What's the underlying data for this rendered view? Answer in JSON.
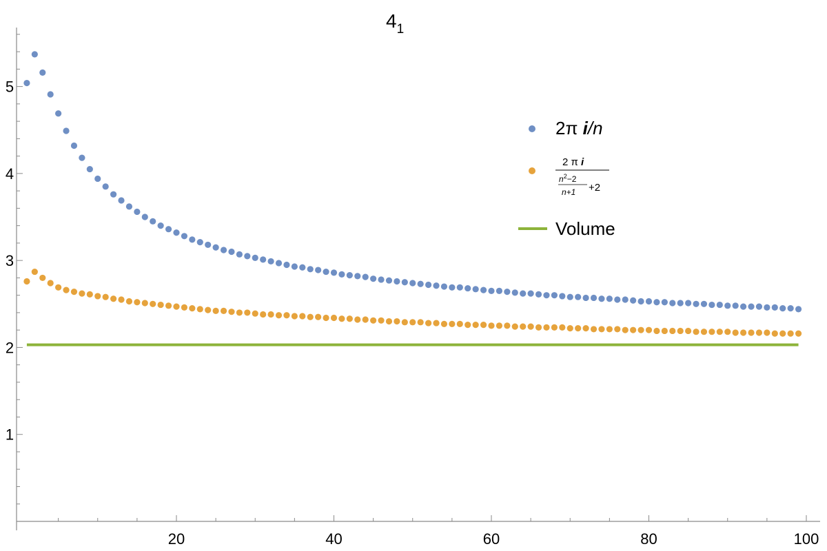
{
  "chart_data": {
    "type": "scatter",
    "title_main": "4",
    "title_sub": "1",
    "xlim": [
      0,
      100
    ],
    "ylim": [
      0,
      5.65
    ],
    "x_ticks": [
      20,
      40,
      60,
      80,
      100
    ],
    "y_ticks": [
      1,
      2,
      3,
      4,
      5
    ],
    "x_ticks_labels": [
      "20",
      "40",
      "60",
      "80",
      "100"
    ],
    "y_ticks_labels": [
      "1",
      "2",
      "3",
      "4",
      "5"
    ],
    "x_start": 1,
    "x_end": 99,
    "series": [
      {
        "key": "blue",
        "color": "#6f8fc4",
        "legend": {
          "prefix": "2π ",
          "imag": "i",
          "suffix": "/n"
        },
        "values": [
          5.04,
          5.37,
          5.16,
          4.91,
          4.69,
          4.49,
          4.32,
          4.18,
          4.05,
          3.94,
          3.85,
          3.76,
          3.69,
          3.62,
          3.56,
          3.5,
          3.45,
          3.4,
          3.36,
          3.32,
          3.28,
          3.24,
          3.21,
          3.18,
          3.15,
          3.12,
          3.1,
          3.07,
          3.05,
          3.03,
          3.01,
          2.99,
          2.97,
          2.95,
          2.93,
          2.92,
          2.9,
          2.89,
          2.87,
          2.86,
          2.84,
          2.83,
          2.82,
          2.81,
          2.79,
          2.78,
          2.77,
          2.76,
          2.75,
          2.74,
          2.73,
          2.72,
          2.71,
          2.7,
          2.69,
          2.69,
          2.68,
          2.67,
          2.66,
          2.65,
          2.65,
          2.64,
          2.63,
          2.62,
          2.62,
          2.61,
          2.6,
          2.6,
          2.59,
          2.58,
          2.58,
          2.57,
          2.57,
          2.56,
          2.56,
          2.55,
          2.55,
          2.54,
          2.53,
          2.53,
          2.52,
          2.52,
          2.51,
          2.51,
          2.51,
          2.5,
          2.5,
          2.49,
          2.49,
          2.48,
          2.48,
          2.47,
          2.47,
          2.47,
          2.46,
          2.46,
          2.45,
          2.45,
          2.44
        ]
      },
      {
        "key": "orange",
        "color": "#e6a33c",
        "legend": {
          "num_prefix": "2 π ",
          "num_imag": "i",
          "den_num": "n",
          "den_num_exp": "2",
          "den_num_tail": "−2",
          "den_den": "n+1",
          "den_tail": "+2"
        },
        "values": [
          2.76,
          2.87,
          2.8,
          2.74,
          2.69,
          2.66,
          2.64,
          2.62,
          2.61,
          2.59,
          2.58,
          2.56,
          2.55,
          2.53,
          2.52,
          2.51,
          2.5,
          2.49,
          2.48,
          2.47,
          2.46,
          2.45,
          2.44,
          2.43,
          2.42,
          2.42,
          2.41,
          2.4,
          2.4,
          2.39,
          2.38,
          2.38,
          2.37,
          2.37,
          2.36,
          2.36,
          2.35,
          2.35,
          2.34,
          2.34,
          2.33,
          2.33,
          2.32,
          2.32,
          2.31,
          2.31,
          2.3,
          2.3,
          2.29,
          2.29,
          2.29,
          2.28,
          2.28,
          2.27,
          2.27,
          2.27,
          2.26,
          2.26,
          2.26,
          2.25,
          2.25,
          2.25,
          2.24,
          2.24,
          2.24,
          2.23,
          2.23,
          2.23,
          2.23,
          2.22,
          2.22,
          2.22,
          2.21,
          2.21,
          2.21,
          2.21,
          2.2,
          2.2,
          2.2,
          2.2,
          2.19,
          2.19,
          2.19,
          2.19,
          2.19,
          2.18,
          2.18,
          2.18,
          2.18,
          2.18,
          2.17,
          2.17,
          2.17,
          2.17,
          2.17,
          2.16,
          2.16,
          2.16,
          2.16
        ]
      },
      {
        "key": "green",
        "color": "#8db33a",
        "legend": {
          "label": "Volume"
        },
        "line_value": 2.0299
      }
    ]
  }
}
